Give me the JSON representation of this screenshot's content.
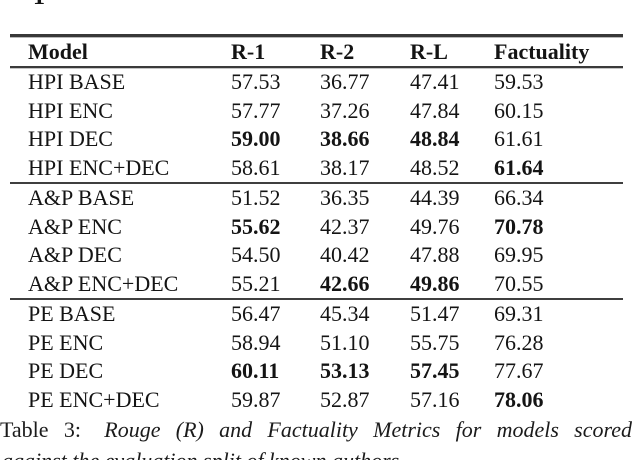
{
  "artifact": {
    "top_fragment_char": "1"
  },
  "table": {
    "columns": [
      "Model",
      "R-1",
      "R-2",
      "R-L",
      "Factuality"
    ],
    "sections": [
      {
        "rows": [
          {
            "model": "HPI BASE",
            "values": [
              "57.53",
              "36.77",
              "47.41",
              "59.53"
            ],
            "bold": [
              false,
              false,
              false,
              false
            ]
          },
          {
            "model": "HPI ENC",
            "values": [
              "57.77",
              "37.26",
              "47.84",
              "60.15"
            ],
            "bold": [
              false,
              false,
              false,
              false
            ]
          },
          {
            "model": "HPI DEC",
            "values": [
              "59.00",
              "38.66",
              "48.84",
              "61.61"
            ],
            "bold": [
              true,
              true,
              true,
              false
            ]
          },
          {
            "model": "HPI ENC+DEC",
            "values": [
              "58.61",
              "38.17",
              "48.52",
              "61.64"
            ],
            "bold": [
              false,
              false,
              false,
              true
            ]
          }
        ]
      },
      {
        "rows": [
          {
            "model": "A&P BASE",
            "values": [
              "51.52",
              "36.35",
              "44.39",
              "66.34"
            ],
            "bold": [
              false,
              false,
              false,
              false
            ]
          },
          {
            "model": "A&P ENC",
            "values": [
              "55.62",
              "42.37",
              "49.76",
              "70.78"
            ],
            "bold": [
              true,
              false,
              false,
              true
            ]
          },
          {
            "model": "A&P DEC",
            "values": [
              "54.50",
              "40.42",
              "47.88",
              "69.95"
            ],
            "bold": [
              false,
              false,
              false,
              false
            ]
          },
          {
            "model": "A&P ENC+DEC",
            "values": [
              "55.21",
              "42.66",
              "49.86",
              "70.55"
            ],
            "bold": [
              false,
              true,
              true,
              false
            ]
          }
        ]
      },
      {
        "rows": [
          {
            "model": "PE BASE",
            "values": [
              "56.47",
              "45.34",
              "51.47",
              "69.31"
            ],
            "bold": [
              false,
              false,
              false,
              false
            ]
          },
          {
            "model": "PE ENC",
            "values": [
              "58.94",
              "51.10",
              "55.75",
              "76.28"
            ],
            "bold": [
              false,
              false,
              false,
              false
            ]
          },
          {
            "model": "PE DEC",
            "values": [
              "60.11",
              "53.13",
              "57.45",
              "77.67"
            ],
            "bold": [
              true,
              true,
              true,
              false
            ]
          },
          {
            "model": "PE ENC+DEC",
            "values": [
              "59.87",
              "52.87",
              "57.16",
              "78.06"
            ],
            "bold": [
              false,
              false,
              false,
              true
            ]
          }
        ]
      }
    ]
  },
  "caption": {
    "label": "Table 3:",
    "text_line1": "Rouge (R) and Factuality Metrics for models scored",
    "text_line2": "against the evaluation split of known authors."
  }
}
